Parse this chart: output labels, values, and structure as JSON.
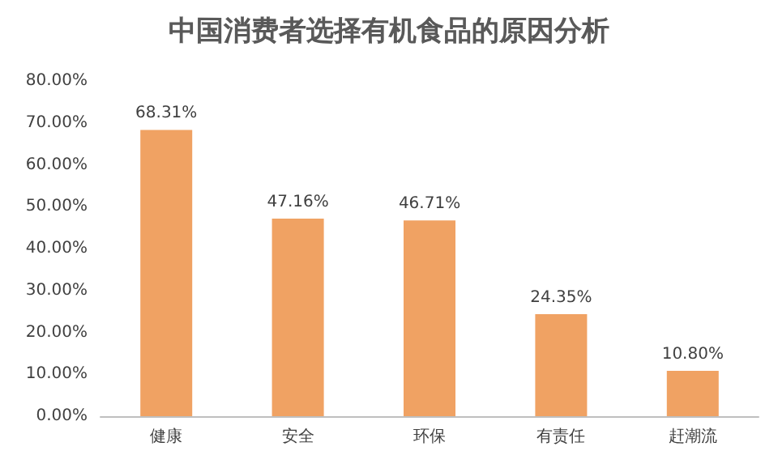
{
  "chart_data": {
    "type": "bar",
    "title": "中国消费者选择有机食品的原因分析",
    "categories": [
      "健康",
      "安全",
      "环保",
      "有责任",
      "赶潮流"
    ],
    "values": [
      68.31,
      47.16,
      46.71,
      24.35,
      10.8
    ],
    "value_labels": [
      "68.31%",
      "47.16%",
      "46.71%",
      "24.35%",
      "10.80%"
    ],
    "color": "#f0a263",
    "ylim": [
      0,
      80
    ],
    "yticks": [
      {
        "value": 0,
        "label": "0.00%"
      },
      {
        "value": 10,
        "label": "10.00%"
      },
      {
        "value": 20,
        "label": "20.00%"
      },
      {
        "value": 30,
        "label": "30.00%"
      },
      {
        "value": 40,
        "label": "40.00%"
      },
      {
        "value": 50,
        "label": "50.00%"
      },
      {
        "value": 60,
        "label": "60.00%"
      },
      {
        "value": 70,
        "label": "70.00%"
      },
      {
        "value": 80,
        "label": "80.00%"
      }
    ],
    "grid": false
  }
}
